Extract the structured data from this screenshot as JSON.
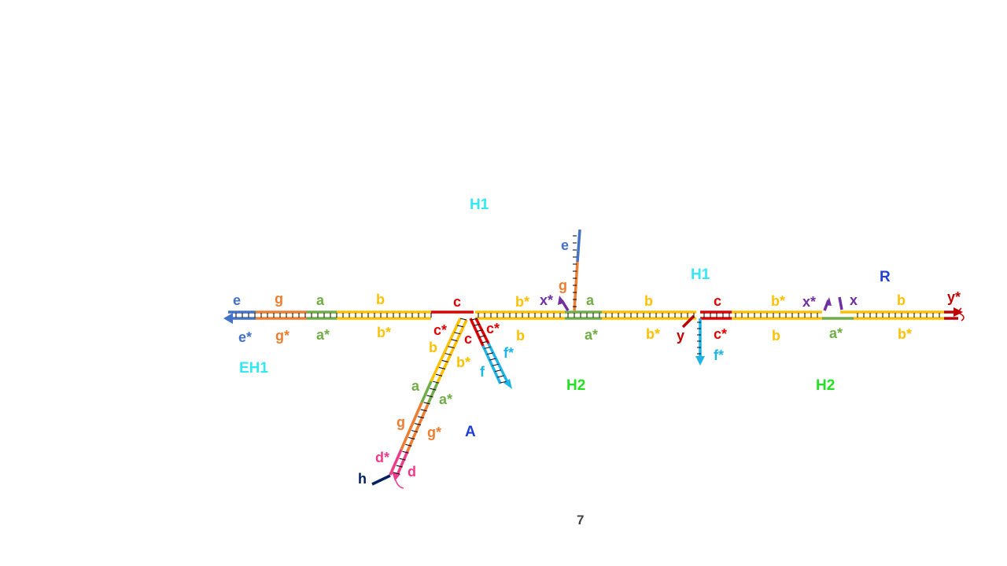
{
  "colors": {
    "e": "#4472c4",
    "g": "#ed7d31",
    "a": "#70ad47",
    "b": "#ffc000",
    "c": "#e00000",
    "f": "#1eb4e6",
    "x": "#7030a0",
    "d": "#ef3b8c",
    "h": "#002060",
    "y": "#c00000",
    "H1": "#33e8f2",
    "EH1": "#33e8f2",
    "H2": "#22e022",
    "A": "#1f3fd6",
    "R": "#1f3fd6",
    "page": "#404040"
  },
  "names": {
    "h1_left": "H1",
    "h1_right": "H1",
    "eh1": "EH1",
    "h2_left": "H2",
    "h2_right": "H2",
    "a_complex": "A",
    "r_complex": "R"
  },
  "labels": {
    "e_top": "e",
    "g_top": "g",
    "a_top": "a",
    "b_top": "b",
    "c_top": "c",
    "e_bot": "e*",
    "g_bot": "g*",
    "a_bot": "a*",
    "b_bot": "b*",
    "cstar_left": "c*",
    "cstar_right": "c*",
    "c_arm": "c",
    "b_arm": "b",
    "b_diag": "b",
    "bstar_diag": "b*",
    "a_diag": "a",
    "astar_diag": "a*",
    "g_diag": "g",
    "gstar_diag": "g*",
    "dstar_diag": "d*",
    "d_diag": "d",
    "h_diag": "h",
    "f_arm": "f",
    "fstar_arm": "f*",
    "bstar_mid": "b*",
    "xstar_mid": "x*",
    "e_vert": "e",
    "g_vert": "g",
    "a_mid": "a",
    "astar_mid": "a*",
    "b_mid": "b",
    "bstar_mid2": "b*",
    "c_mid": "c",
    "cstar_mid": "c*",
    "y_mid": "y",
    "fstar_mid": "f*",
    "bstar_right": "b*",
    "b_right_bot": "b",
    "xstar_right": "x*",
    "x_right": "x",
    "astar_right": "a*",
    "b_far": "b",
    "bstar_far": "b*",
    "ystar_far": "y*"
  },
  "page_number": "7"
}
